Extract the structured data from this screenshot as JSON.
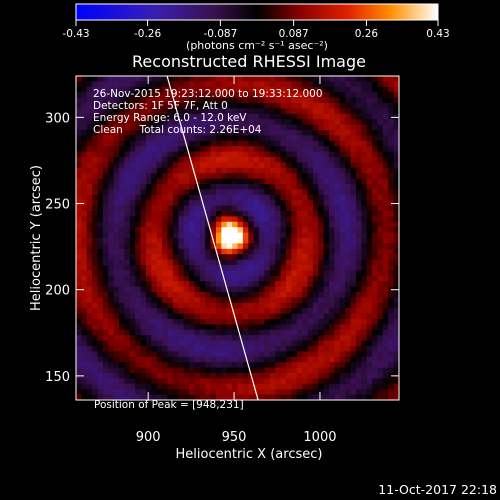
{
  "colorbar": {
    "ticks": [
      "-0.43",
      "-0.26",
      "-0.087",
      "0.087",
      "0.26",
      "0.43"
    ],
    "tick_values": [
      -0.43,
      -0.26,
      -0.087,
      0.087,
      0.26,
      0.43
    ],
    "range": [
      -0.43,
      0.43
    ],
    "unit_label": "(photons cm⁻² s⁻¹ asec⁻²)"
  },
  "title": "Reconstructed RHESSI Image",
  "info": {
    "line1": "26-Nov-2015 19:23:12.000 to 19:33:12.000",
    "line2": "Detectors: 1F 5F 7F, Att 0",
    "line3": "Energy Range: 6.0 - 12.0 keV",
    "line4": "Clean     Total counts: 2.26E+04"
  },
  "peak_label": "Position of Peak = [948,231]",
  "timestamp": "11-Oct-2017 22:18",
  "chart_data": {
    "type": "heatmap",
    "title": "Reconstructed RHESSI Image",
    "xlabel": "Heliocentric X (arcsec)",
    "ylabel": "Heliocentric Y (arcsec)",
    "xlim": [
      858,
      1046
    ],
    "ylim": [
      136,
      324
    ],
    "x_ticks": [
      900,
      950,
      1000
    ],
    "y_ticks": [
      150,
      200,
      250,
      300
    ],
    "peak": {
      "x": 948,
      "y": 231
    },
    "limb": {
      "x_at_ymax": 911,
      "x_at_ymin": 964
    }
  },
  "colors": {
    "background": "#000000",
    "text": "#ffffff"
  }
}
